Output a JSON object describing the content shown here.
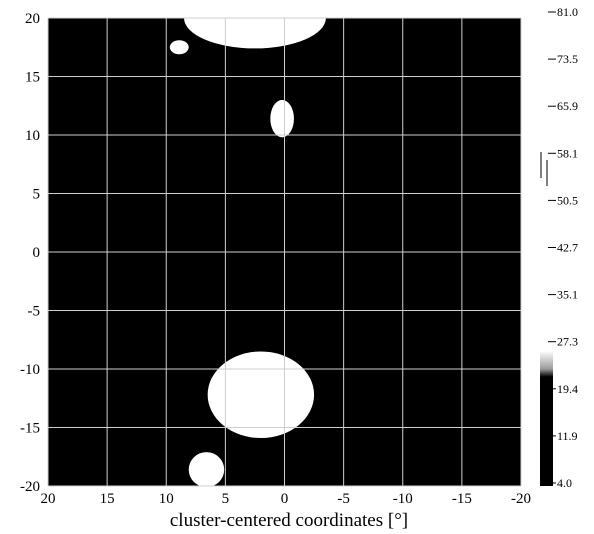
{
  "chart_data": {
    "type": "heatmap",
    "xlabel": "cluster-centered coordinates [°]",
    "ylabel": "",
    "title": "",
    "xlim": [
      20,
      -20
    ],
    "ylim": [
      -20,
      20
    ],
    "x_ticks": [
      "20",
      "15",
      "10",
      "5",
      "0",
      "-5",
      "-10",
      "-15",
      "-20"
    ],
    "y_ticks": [
      "20",
      "15",
      "10",
      "5",
      "0",
      "-5",
      "-10",
      "-15",
      "-20"
    ],
    "grid": true,
    "background_color": "#000000",
    "colorbar": {
      "ticks": [
        "81.0",
        "73.5",
        "65.9",
        "58.1",
        "50.5",
        "42.7",
        "35.1",
        "27.3",
        "19.4",
        "11.9",
        "4.0"
      ],
      "range": [
        4.0,
        81.0
      ]
    },
    "blobs": [
      {
        "x": 2.5,
        "y": 20.0,
        "rx": 6.0,
        "ry": 2.6,
        "value": 81
      },
      {
        "x": 8.9,
        "y": 17.5,
        "rx": 0.8,
        "ry": 0.6,
        "value": 81
      },
      {
        "x": 0.2,
        "y": 11.4,
        "rx": 1.0,
        "ry": 1.6,
        "value": 81
      },
      {
        "x": 2.0,
        "y": -12.2,
        "rx": 4.5,
        "ry": 3.7,
        "value": 81
      },
      {
        "x": 6.6,
        "y": -18.6,
        "rx": 1.5,
        "ry": 1.5,
        "value": 81
      }
    ]
  }
}
